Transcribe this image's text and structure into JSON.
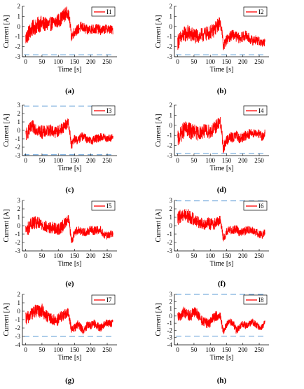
{
  "chart_data": [
    {
      "panel_label": "(a)",
      "type": "line",
      "legend": "I1",
      "xlabel": "Time [s]",
      "ylabel": "Current [A]",
      "xlim": [
        -10,
        280
      ],
      "ylim": [
        -3,
        2
      ],
      "xticks": [
        "0",
        "50",
        "100",
        "150",
        "200",
        "250"
      ],
      "yticks": [
        "-3",
        "-2",
        "-1",
        "0",
        "1",
        "2"
      ],
      "limit_lines": [
        -2.8
      ],
      "series": [
        {
          "color": "#ff0000",
          "x": [
            0,
            10,
            20,
            30,
            40,
            50,
            60,
            70,
            80,
            90,
            100,
            110,
            120,
            130,
            135,
            140,
            150,
            160,
            170,
            180,
            190,
            200,
            210,
            220,
            230,
            240,
            250,
            260,
            268
          ],
          "y": [
            -1.2,
            -0.6,
            -0.2,
            0.0,
            0.2,
            0.3,
            0.2,
            0.2,
            0.3,
            0.4,
            0.6,
            0.8,
            1.2,
            1.4,
            0.6,
            -1.0,
            -0.5,
            -0.3,
            0.0,
            -0.2,
            -0.4,
            -0.2,
            -0.3,
            -0.2,
            -0.4,
            -0.3,
            -0.2,
            -0.3,
            -0.4
          ],
          "spread": [
            1.6,
            1.6,
            1.6,
            1.6,
            1.6,
            1.6,
            1.4,
            1.4,
            1.4,
            1.4,
            1.4,
            1.4,
            1.4,
            1.2,
            1.0,
            1.0,
            1.0,
            1.0,
            1.0,
            1.0,
            1.0,
            1.0,
            1.0,
            1.0,
            0.9,
            0.9,
            0.9,
            0.9,
            0.8
          ]
        }
      ]
    },
    {
      "panel_label": "(b)",
      "type": "line",
      "legend": "I2",
      "xlabel": "Time [s]",
      "ylabel": "Current [A]",
      "xlim": [
        -10,
        280
      ],
      "ylim": [
        -3,
        2
      ],
      "xticks": [
        "0",
        "50",
        "100",
        "150",
        "200",
        "250"
      ],
      "yticks": [
        "-3",
        "-2",
        "-1",
        "0",
        "1",
        "2"
      ],
      "limit_lines": [
        -2.8
      ],
      "series": [
        {
          "color": "#ff0000",
          "x": [
            0,
            10,
            20,
            30,
            40,
            50,
            60,
            70,
            80,
            90,
            100,
            110,
            120,
            130,
            135,
            140,
            150,
            160,
            170,
            180,
            190,
            200,
            210,
            220,
            230,
            240,
            250,
            260,
            268
          ],
          "y": [
            -1.5,
            -1.2,
            -0.8,
            -0.6,
            -0.8,
            -0.9,
            -1.0,
            -0.9,
            -0.8,
            -0.7,
            -0.6,
            -0.4,
            0.0,
            0.4,
            -0.2,
            -2.0,
            -1.3,
            -1.0,
            -0.8,
            -1.0,
            -1.2,
            -1.0,
            -0.9,
            -1.2,
            -1.4,
            -1.3,
            -1.5,
            -1.6,
            -1.6
          ],
          "spread": [
            1.6,
            1.6,
            1.6,
            1.6,
            1.6,
            1.6,
            1.4,
            1.4,
            1.4,
            1.4,
            1.4,
            1.4,
            1.4,
            1.2,
            1.0,
            1.0,
            1.0,
            1.0,
            1.0,
            1.0,
            1.0,
            1.0,
            1.0,
            1.0,
            0.9,
            0.9,
            0.9,
            0.9,
            0.8
          ]
        }
      ]
    },
    {
      "panel_label": "(c)",
      "type": "line",
      "legend": "I3",
      "xlabel": "Time [s]",
      "ylabel": "Current [A]",
      "xlim": [
        -10,
        280
      ],
      "ylim": [
        -3,
        3
      ],
      "xticks": [
        "0",
        "50",
        "100",
        "150",
        "200",
        "250"
      ],
      "yticks": [
        "-3",
        "-2",
        "-1",
        "0",
        "1",
        "2",
        "3"
      ],
      "limit_lines": [
        2.9,
        -2.9
      ],
      "series": [
        {
          "color": "#ff0000",
          "x": [
            0,
            10,
            20,
            30,
            40,
            50,
            60,
            70,
            80,
            90,
            100,
            110,
            120,
            130,
            135,
            140,
            150,
            160,
            170,
            180,
            190,
            200,
            210,
            220,
            230,
            240,
            250,
            260,
            268
          ],
          "y": [
            -0.6,
            0.0,
            0.4,
            0.3,
            0.0,
            -0.2,
            -0.2,
            0.0,
            0.0,
            -0.2,
            -0.1,
            0.2,
            0.6,
            0.9,
            0.0,
            -1.8,
            -1.0,
            -1.2,
            -0.8,
            -0.6,
            -1.2,
            -1.3,
            -1.0,
            -1.0,
            -0.8,
            -0.8,
            -1.0,
            -0.9,
            -0.8
          ],
          "spread": [
            1.6,
            1.6,
            1.6,
            1.6,
            1.6,
            1.6,
            1.4,
            1.4,
            1.4,
            1.4,
            1.4,
            1.4,
            1.4,
            1.2,
            1.0,
            1.0,
            1.0,
            1.0,
            1.0,
            1.0,
            1.0,
            1.0,
            1.0,
            1.0,
            0.9,
            0.9,
            0.9,
            0.9,
            0.8
          ]
        }
      ]
    },
    {
      "panel_label": "(d)",
      "type": "line",
      "legend": "I4",
      "xlabel": "Time [s]",
      "ylabel": "Current [A]",
      "xlim": [
        -10,
        280
      ],
      "ylim": [
        -3,
        2
      ],
      "xticks": [
        "0",
        "50",
        "100",
        "150",
        "200",
        "250"
      ],
      "yticks": [
        "-3",
        "-2",
        "-1",
        "0",
        "1",
        "2"
      ],
      "limit_lines": [
        -2.8
      ],
      "series": [
        {
          "color": "#ff0000",
          "x": [
            0,
            10,
            20,
            30,
            40,
            50,
            60,
            70,
            80,
            90,
            100,
            110,
            120,
            130,
            135,
            140,
            150,
            160,
            170,
            180,
            190,
            200,
            210,
            220,
            230,
            240,
            250,
            260,
            268
          ],
          "y": [
            -1.4,
            -0.9,
            -0.4,
            -0.4,
            -0.6,
            -0.6,
            -0.8,
            -0.7,
            -0.6,
            -0.6,
            -0.6,
            -0.4,
            0.0,
            0.3,
            -0.6,
            -2.3,
            -1.5,
            -1.2,
            -1.2,
            -1.0,
            -1.3,
            -1.2,
            -1.0,
            -0.8,
            -0.8,
            -0.7,
            -0.9,
            -1.1,
            -0.8
          ],
          "spread": [
            1.6,
            1.6,
            1.6,
            1.6,
            1.6,
            1.6,
            1.4,
            1.4,
            1.4,
            1.4,
            1.4,
            1.4,
            1.4,
            1.2,
            1.0,
            1.0,
            1.0,
            1.0,
            1.0,
            1.0,
            1.0,
            1.0,
            1.0,
            1.0,
            0.9,
            0.9,
            0.9,
            0.9,
            0.8
          ]
        }
      ]
    },
    {
      "panel_label": "(e)",
      "type": "line",
      "legend": "I5",
      "xlabel": "Time [s]",
      "ylabel": "Current [A]",
      "xlim": [
        -10,
        280
      ],
      "ylim": [
        -3,
        3
      ],
      "xticks": [
        "0",
        "50",
        "100",
        "150",
        "200",
        "250"
      ],
      "yticks": [
        "-3",
        "-2",
        "-1",
        "0",
        "1",
        "2",
        "3"
      ],
      "limit_lines": [],
      "series": [
        {
          "color": "#ff0000",
          "x": [
            0,
            10,
            20,
            30,
            40,
            50,
            60,
            70,
            80,
            90,
            100,
            110,
            120,
            130,
            135,
            140,
            150,
            160,
            170,
            180,
            190,
            200,
            210,
            220,
            230,
            240,
            250,
            260,
            268
          ],
          "y": [
            -0.6,
            -0.2,
            0.4,
            0.3,
            0.2,
            0.2,
            -0.1,
            -0.3,
            -0.2,
            -0.3,
            -0.4,
            -0.2,
            0.3,
            0.9,
            0.1,
            -2.0,
            -0.8,
            -0.5,
            -0.6,
            -0.8,
            -0.7,
            -0.5,
            -0.6,
            -0.5,
            -0.5,
            -1.1,
            -1.2,
            -1.0,
            -0.9
          ],
          "spread": [
            1.6,
            1.6,
            1.6,
            1.6,
            1.6,
            1.6,
            1.4,
            1.4,
            1.4,
            1.4,
            1.4,
            1.4,
            1.4,
            1.2,
            1.0,
            1.0,
            1.0,
            1.0,
            1.0,
            1.0,
            1.0,
            1.0,
            1.0,
            1.0,
            0.9,
            0.9,
            0.9,
            0.9,
            0.8
          ]
        }
      ]
    },
    {
      "panel_label": "(f)",
      "type": "line",
      "legend": "I6",
      "xlabel": "Time [s]",
      "ylabel": "Current [A]",
      "xlim": [
        -10,
        280
      ],
      "ylim": [
        -3,
        3
      ],
      "xticks": [
        "0",
        "50",
        "100",
        "150",
        "200",
        "250"
      ],
      "yticks": [
        "-3",
        "-2",
        "-1",
        "0",
        "1",
        "2",
        "3"
      ],
      "limit_lines": [
        2.95
      ],
      "series": [
        {
          "color": "#ff0000",
          "x": [
            0,
            10,
            20,
            30,
            40,
            50,
            60,
            70,
            80,
            90,
            100,
            110,
            120,
            130,
            135,
            140,
            150,
            160,
            170,
            180,
            190,
            200,
            210,
            220,
            230,
            240,
            250,
            260,
            268
          ],
          "y": [
            0.8,
            1.2,
            1.4,
            1.2,
            1.0,
            0.8,
            0.5,
            0.3,
            0.2,
            0.3,
            0.2,
            0.2,
            0.4,
            0.6,
            0.0,
            -1.6,
            -0.8,
            -0.5,
            -0.5,
            -0.4,
            -0.8,
            -0.7,
            -0.6,
            -0.5,
            -0.6,
            -0.8,
            -1.0,
            -1.2,
            -0.7
          ],
          "spread": [
            1.6,
            1.6,
            1.6,
            1.6,
            1.6,
            1.6,
            1.4,
            1.4,
            1.4,
            1.4,
            1.4,
            1.4,
            1.4,
            1.2,
            1.0,
            1.0,
            1.0,
            1.0,
            1.0,
            1.0,
            1.0,
            1.0,
            1.0,
            1.0,
            0.9,
            0.9,
            0.9,
            0.9,
            0.8
          ]
        }
      ]
    },
    {
      "panel_label": "(g)",
      "type": "line",
      "legend": "I7",
      "xlabel": "Time [s]",
      "ylabel": "Current [A]",
      "xlim": [
        -10,
        280
      ],
      "ylim": [
        -4,
        2
      ],
      "xticks": [
        "0",
        "50",
        "100",
        "150",
        "200",
        "250"
      ],
      "yticks": [
        "-4",
        "-3",
        "-2",
        "-1",
        "0",
        "1",
        "2"
      ],
      "limit_lines": [
        -3.0
      ],
      "series": [
        {
          "color": "#ff0000",
          "x": [
            0,
            10,
            20,
            30,
            40,
            50,
            60,
            70,
            80,
            90,
            100,
            110,
            120,
            130,
            135,
            140,
            150,
            160,
            170,
            180,
            190,
            200,
            210,
            220,
            230,
            240,
            250,
            260,
            268
          ],
          "y": [
            -1.0,
            -0.6,
            -0.2,
            0.0,
            0.0,
            0.1,
            -0.4,
            -0.8,
            -1.0,
            -1.1,
            -1.0,
            -0.6,
            -0.4,
            -0.2,
            -1.0,
            -2.1,
            -2.0,
            -1.6,
            -2.0,
            -2.4,
            -1.5,
            -1.7,
            -1.5,
            -1.8,
            -2.0,
            -1.6,
            -1.4,
            -1.5,
            -1.4
          ],
          "spread": [
            1.6,
            1.6,
            1.6,
            1.6,
            1.6,
            1.6,
            1.4,
            1.4,
            1.4,
            1.4,
            1.4,
            1.4,
            1.4,
            1.2,
            1.0,
            1.0,
            1.0,
            1.0,
            1.0,
            1.0,
            1.0,
            1.0,
            1.0,
            1.0,
            0.9,
            0.9,
            0.9,
            0.9,
            0.8
          ]
        }
      ]
    },
    {
      "panel_label": "(h)",
      "type": "line",
      "legend": "I8",
      "xlabel": "Time [s]",
      "ylabel": "Current [A]",
      "xlim": [
        -10,
        280
      ],
      "ylim": [
        -4,
        3
      ],
      "xticks": [
        "0",
        "50",
        "100",
        "150",
        "200",
        "250"
      ],
      "yticks": [
        "-4",
        "-3",
        "-2",
        "-1",
        "0",
        "1",
        "2",
        "3"
      ],
      "limit_lines": [
        3.0,
        -2.8
      ],
      "series": [
        {
          "color": "#ff0000",
          "x": [
            0,
            10,
            20,
            30,
            40,
            50,
            60,
            70,
            80,
            90,
            100,
            110,
            120,
            130,
            135,
            140,
            150,
            160,
            170,
            180,
            190,
            200,
            210,
            220,
            230,
            240,
            250,
            260,
            268
          ],
          "y": [
            -0.4,
            0.2,
            0.6,
            0.2,
            0.0,
            0.5,
            0.4,
            -0.5,
            -0.8,
            -1.0,
            -0.9,
            -0.2,
            0.0,
            0.2,
            -1.0,
            -2.2,
            -1.2,
            -0.8,
            -1.0,
            -2.0,
            -1.6,
            -1.0,
            -1.4,
            -1.0,
            -0.8,
            -1.2,
            -1.6,
            -1.4,
            -0.8
          ],
          "spread": [
            1.6,
            1.6,
            1.6,
            1.6,
            1.6,
            1.6,
            1.4,
            1.4,
            1.4,
            1.4,
            1.4,
            1.4,
            1.4,
            1.2,
            1.0,
            1.0,
            1.0,
            1.0,
            1.0,
            1.0,
            1.0,
            1.0,
            1.0,
            1.0,
            0.9,
            0.9,
            0.9,
            0.9,
            0.8
          ]
        }
      ]
    }
  ]
}
